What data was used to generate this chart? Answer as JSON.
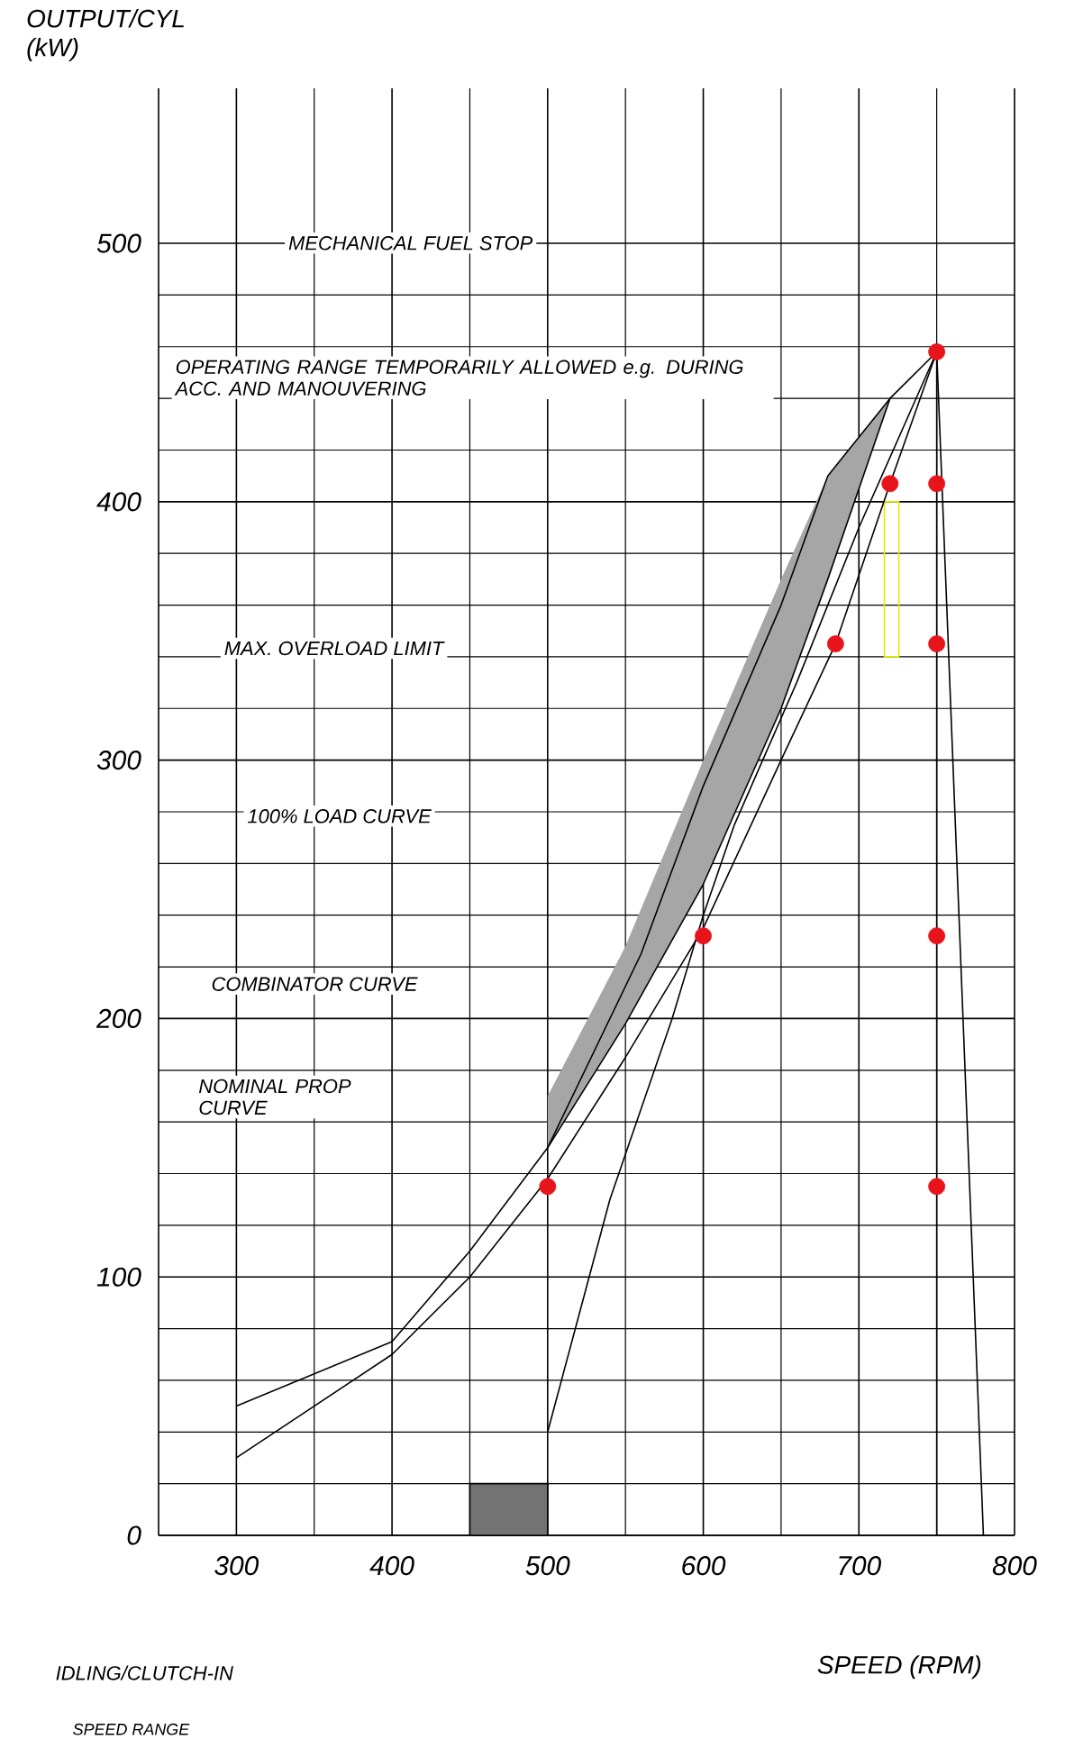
{
  "chart_data": {
    "type": "line",
    "xlabel": "SPEED (RPM)",
    "ylabel": "OUTPUT/CYL (kW)",
    "xlim": [
      250,
      800
    ],
    "ylim": [
      0,
      560
    ],
    "xticks": [
      300,
      400,
      500,
      600,
      700,
      800
    ],
    "yticks": [
      0,
      100,
      200,
      300,
      400,
      500
    ],
    "grid": true,
    "series": [
      {
        "color": "#000000",
        "x": [
          300,
          400,
          450,
          500,
          560,
          600,
          650,
          680,
          720,
          750
        ],
        "values": [
          50,
          75,
          110,
          150,
          225,
          290,
          360,
          410,
          440,
          458
        ]
      },
      {
        "color": "#000000",
        "x": [
          300,
          400,
          450,
          500,
          550,
          600,
          650,
          685,
          720,
          750
        ],
        "values": [
          30,
          70,
          100,
          138,
          185,
          235,
          300,
          345,
          407,
          458
        ]
      },
      {
        "color": "#000000",
        "x": [
          500,
          540,
          580,
          600,
          620,
          660,
          700,
          750
        ],
        "values": [
          40,
          130,
          200,
          240,
          275,
          330,
          390,
          458
        ]
      },
      {
        "color": "#000000",
        "x": [
          500,
          550,
          600,
          650,
          680,
          720
        ],
        "values": [
          150,
          198,
          252,
          320,
          370,
          440
        ],
        "lower": [
          150,
          198,
          252,
          320,
          370,
          440
        ],
        "upper": [
          170,
          228,
          300,
          370,
          410,
          440
        ]
      },
      {
        "type": "area",
        "color": "#000000",
        "x": [
          450,
          500
        ],
        "values": [
          20,
          20
        ]
      },
      {
        "color": "#000000",
        "x": [
          750,
          750
        ],
        "values": [
          0,
          458
        ]
      },
      {
        "color": "#000000",
        "x": [
          750,
          780
        ],
        "values": [
          458,
          0
        ]
      },
      {
        "type": "bar",
        "color": "#e8e800",
        "x": [
          721
        ],
        "base": [
          340
        ],
        "values": [
          60
        ]
      },
      {
        "type": "scatter",
        "color": "#e8141c",
        "marker": "circle",
        "x": [
          500,
          600,
          685,
          720,
          750,
          750,
          750,
          750,
          750
        ],
        "values": [
          135,
          232,
          345,
          407,
          458,
          407,
          345,
          232,
          135
        ]
      }
    ],
    "annotations": [
      "MECHANICAL FUEL STOP",
      "OPERATING RANGE TEMPORARILY ALLOWED e.g. DURING ACC. AND MANOUVERING",
      "MAX. OVERLOAD LIMIT",
      "100% LOAD CURVE",
      "COMBINATOR CURVE",
      "NOMINAL PROP CURVE",
      "IDLING/CLUTCH-IN",
      "SPEED RANGE"
    ]
  }
}
